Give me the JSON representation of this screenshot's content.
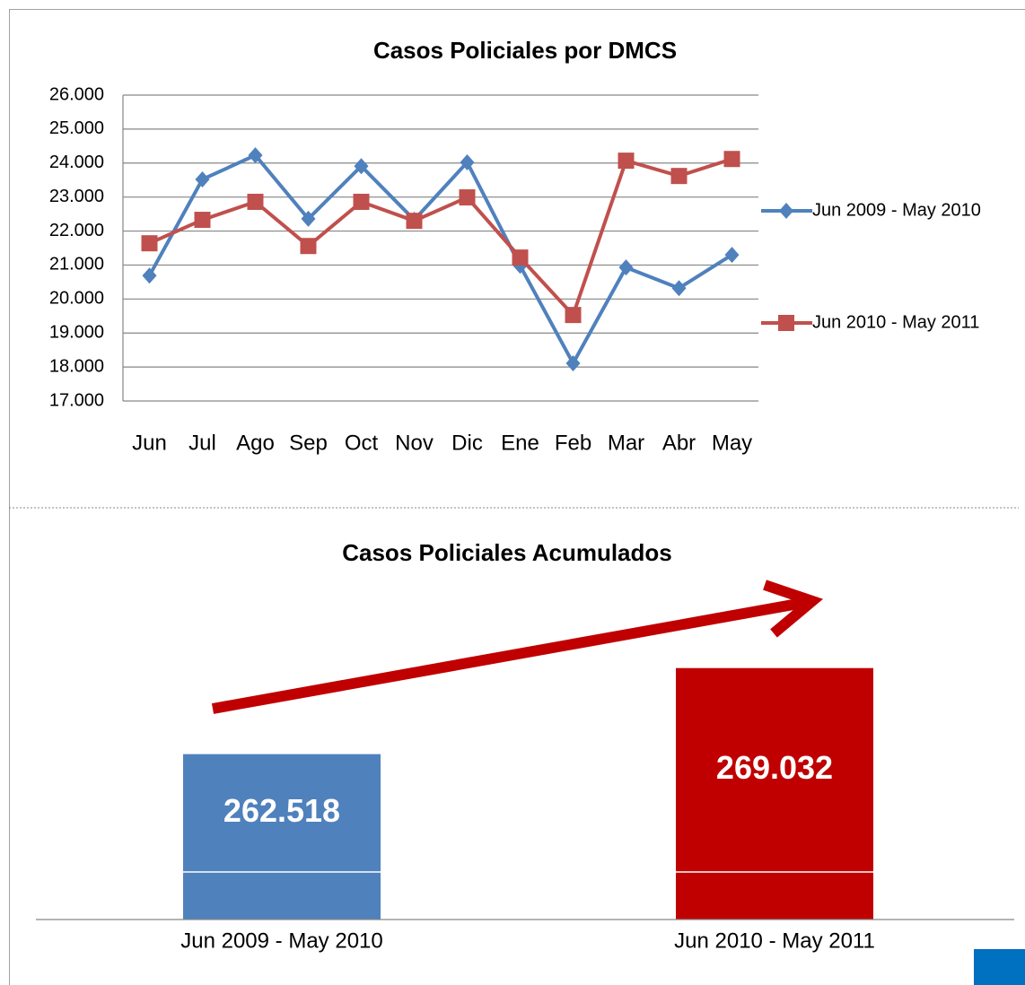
{
  "chart_data": [
    {
      "type": "line",
      "title": "Casos Policiales por DMCS",
      "categories": [
        "Jun",
        "Jul",
        "Ago",
        "Sep",
        "Oct",
        "Nov",
        "Dic",
        "Ene",
        "Feb",
        "Mar",
        "Abr",
        "May"
      ],
      "series": [
        {
          "name": "Jun 2009 - May 2010",
          "color": "#4f81bd",
          "marker": "diamond",
          "values": [
            20690,
            23520,
            24230,
            22360,
            23910,
            22330,
            24020,
            20980,
            18110,
            20930,
            20320,
            21300
          ]
        },
        {
          "name": "Jun 2010 - May 2011",
          "color": "#c0504d",
          "marker": "square",
          "values": [
            21640,
            22330,
            22860,
            21560,
            22860,
            22300,
            22990,
            21220,
            19530,
            24070,
            23620,
            24120
          ]
        }
      ],
      "ylim": [
        17000,
        26000
      ],
      "yticks": [
        {
          "value": 17000,
          "label": "17.000"
        },
        {
          "value": 18000,
          "label": "18.000"
        },
        {
          "value": 19000,
          "label": "19.000"
        },
        {
          "value": 20000,
          "label": "20.000"
        },
        {
          "value": 21000,
          "label": "21.000"
        },
        {
          "value": 22000,
          "label": "22.000"
        },
        {
          "value": 23000,
          "label": "23.000"
        },
        {
          "value": 24000,
          "label": "24.000"
        },
        {
          "value": 25000,
          "label": "25.000"
        },
        {
          "value": 26000,
          "label": "26.000"
        }
      ],
      "grid": true,
      "legend": "right"
    },
    {
      "type": "bar",
      "title": "Casos Policiales Acumulados",
      "categories": [
        "Jun 2009 - May 2010",
        "Jun 2010 - May 2011"
      ],
      "values": [
        262518,
        269032
      ],
      "value_labels": [
        "262.518",
        "269.032"
      ],
      "colors": [
        "#4f81bd",
        "#c00000"
      ],
      "ylim": [
        250000,
        272000
      ]
    }
  ]
}
